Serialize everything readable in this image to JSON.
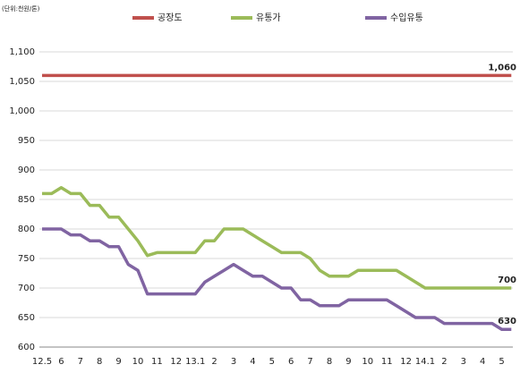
{
  "chart_data": {
    "type": "line",
    "unit_label": "(단위:천원/톤)",
    "categories": [
      "12.5",
      null,
      "6",
      null,
      "7",
      null,
      "8",
      null,
      "9",
      null,
      "10",
      null,
      "11",
      null,
      "12",
      null,
      "13.1",
      null,
      "2",
      null,
      "3",
      null,
      "4",
      null,
      "5",
      null,
      "6",
      null,
      "7",
      null,
      "8",
      null,
      "9",
      null,
      "10",
      null,
      "11",
      null,
      "12",
      null,
      "14.1",
      null,
      "2",
      null,
      "3",
      null,
      "4",
      null,
      "5",
      null
    ],
    "series": [
      {
        "name": "공장도",
        "color": "#c0504d",
        "values": [
          1060,
          1060,
          1060,
          1060,
          1060,
          1060,
          1060,
          1060,
          1060,
          1060,
          1060,
          1060,
          1060,
          1060,
          1060,
          1060,
          1060,
          1060,
          1060,
          1060,
          1060,
          1060,
          1060,
          1060,
          1060,
          1060,
          1060,
          1060,
          1060,
          1060,
          1060,
          1060,
          1060,
          1060,
          1060,
          1060,
          1060,
          1060,
          1060,
          1060,
          1060,
          1060,
          1060,
          1060,
          1060,
          1060,
          1060,
          1060,
          1060,
          1060
        ],
        "value_labels": [
          null,
          null,
          null,
          null,
          null,
          null,
          null,
          null,
          null,
          null,
          null,
          null,
          null,
          null,
          null,
          null,
          null,
          null,
          null,
          null,
          null,
          null,
          null,
          null,
          null,
          null,
          null,
          null,
          null,
          null,
          null,
          null,
          null,
          null,
          null,
          null,
          null,
          null,
          null,
          null,
          null,
          null,
          null,
          null,
          null,
          null,
          null,
          null,
          null,
          "1,060"
        ]
      },
      {
        "name": "유통가",
        "color": "#9bbb59",
        "values": [
          860,
          860,
          870,
          860,
          860,
          840,
          840,
          820,
          820,
          800,
          780,
          755,
          760,
          760,
          760,
          760,
          760,
          780,
          780,
          800,
          800,
          800,
          790,
          780,
          770,
          760,
          760,
          760,
          750,
          730,
          720,
          720,
          720,
          730,
          730,
          730,
          730,
          730,
          720,
          710,
          700,
          700,
          700,
          700,
          700,
          700,
          700,
          700,
          700,
          700
        ],
        "value_labels": [
          null,
          null,
          null,
          null,
          null,
          null,
          null,
          null,
          null,
          null,
          null,
          null,
          null,
          null,
          null,
          null,
          null,
          null,
          null,
          null,
          null,
          null,
          null,
          null,
          null,
          null,
          null,
          null,
          null,
          null,
          null,
          null,
          null,
          null,
          null,
          null,
          null,
          null,
          null,
          null,
          null,
          null,
          null,
          null,
          null,
          null,
          null,
          null,
          null,
          "700"
        ]
      },
      {
        "name": "수입유통",
        "color": "#8064a2",
        "values": [
          800,
          800,
          800,
          790,
          790,
          780,
          780,
          770,
          770,
          740,
          730,
          690,
          690,
          690,
          690,
          690,
          690,
          710,
          720,
          730,
          740,
          730,
          720,
          720,
          710,
          700,
          700,
          680,
          680,
          670,
          670,
          670,
          680,
          680,
          680,
          680,
          680,
          670,
          660,
          650,
          650,
          650,
          640,
          640,
          640,
          640,
          640,
          640,
          630,
          630
        ],
        "value_labels": [
          null,
          null,
          null,
          null,
          null,
          null,
          null,
          null,
          null,
          null,
          null,
          null,
          null,
          null,
          null,
          null,
          null,
          null,
          null,
          null,
          null,
          null,
          null,
          null,
          null,
          null,
          null,
          null,
          null,
          null,
          null,
          null,
          null,
          null,
          null,
          null,
          null,
          null,
          null,
          null,
          null,
          null,
          null,
          null,
          null,
          null,
          null,
          null,
          null,
          "630"
        ]
      }
    ],
    "ylim": [
      600,
      1100
    ],
    "yticks": [
      600,
      650,
      700,
      750,
      800,
      850,
      900,
      950,
      {
        "value": 1000,
        "label": "1,000"
      },
      {
        "value": 1050,
        "label": "1,050"
      },
      {
        "value": 1100,
        "label": "1,100"
      }
    ],
    "grid": true,
    "legend": "top"
  }
}
